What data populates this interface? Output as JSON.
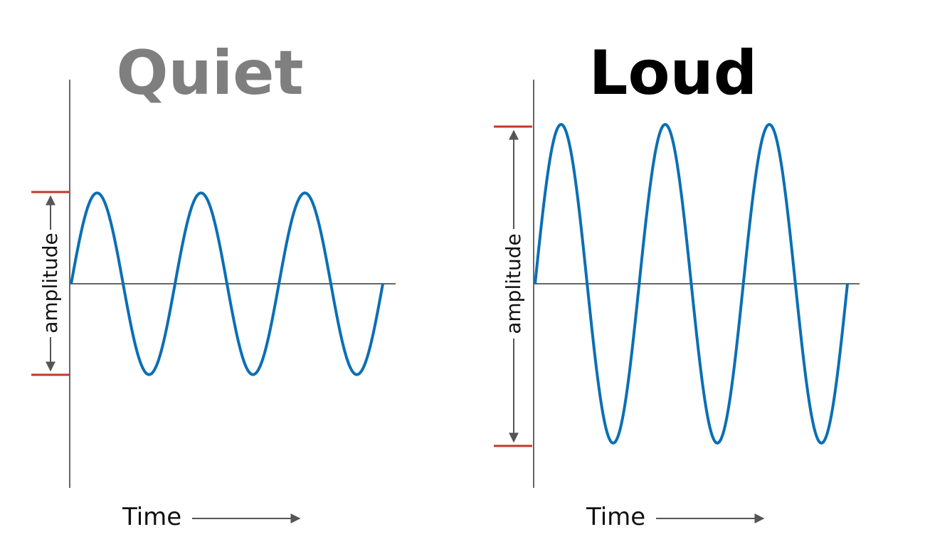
{
  "colors": {
    "wave": "#0a6fb5",
    "axis": "#666666",
    "marker": "#c0392b",
    "arrow": "#555555"
  },
  "panels": [
    {
      "title": "Quiet",
      "title_color": "#7f7f7f",
      "amplitude_label": "amplitude",
      "x_label": "Time",
      "relative_amplitude": 0.57,
      "cycles": 3
    },
    {
      "title": "Loud",
      "title_color": "#000000",
      "amplitude_label": "amplitude",
      "x_label": "Time",
      "relative_amplitude": 1.0,
      "cycles": 3
    }
  ]
}
